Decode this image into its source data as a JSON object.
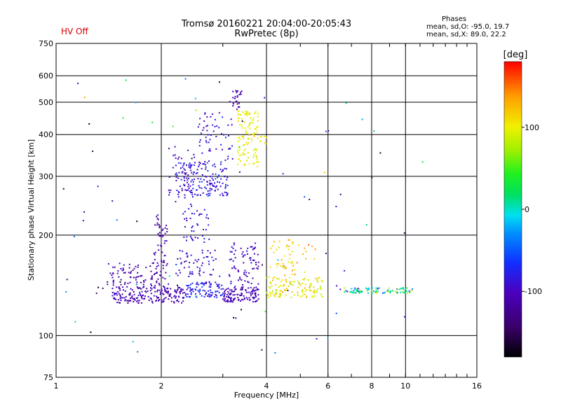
{
  "header": {
    "title_line1": "Tromsø 20160221 20:04:00-20:05:43",
    "title_line2": "RwPretec (8p)",
    "hv_status": "HV Off"
  },
  "phases": {
    "heading": "Phases",
    "o_line": "mean, sd,O: -95.0, 19.7",
    "x_line": "mean, sd,X:  89.0, 22.2"
  },
  "colorbar": {
    "unit": "[deg]",
    "ticks": [
      {
        "label": "100",
        "value": 100
      },
      {
        "label": "0",
        "value": 0
      },
      {
        "label": "-100",
        "value": -100
      }
    ],
    "range": [
      -180,
      180
    ]
  },
  "chart_data": {
    "type": "scatter",
    "title": "Tromsø 20160221 20:04:00-20:05:43",
    "subtitle": "RwPretec (8p)",
    "xlabel": "Frequency [MHz]",
    "ylabel": "Stationary phase Virtual Height [km]",
    "xscale": "log",
    "yscale": "log",
    "xlim": [
      1,
      16
    ],
    "ylim": [
      75,
      750
    ],
    "grid": true,
    "x_ticks": [
      {
        "label": "1",
        "value": 1
      },
      {
        "label": "2",
        "value": 2
      },
      {
        "label": "4",
        "value": 4
      },
      {
        "label": "6",
        "value": 6
      },
      {
        "label": "8",
        "value": 8
      },
      {
        "label": "10",
        "value": 10
      },
      {
        "label": "16",
        "value": 16
      }
    ],
    "y_ticks": [
      {
        "label": "75",
        "value": 75
      },
      {
        "label": "100",
        "value": 100
      },
      {
        "label": "200",
        "value": 200
      },
      {
        "label": "300",
        "value": 300
      },
      {
        "label": "400",
        "value": 400
      },
      {
        "label": "500",
        "value": 500
      },
      {
        "label": "600",
        "value": 600
      },
      {
        "label": "750",
        "value": 750
      }
    ],
    "clusters": [
      {
        "x": [
          1.45,
          2.35
        ],
        "y": [
          125,
          140
        ],
        "n": 190,
        "phase": -105,
        "sd": 15
      },
      {
        "x": [
          1.4,
          2.1
        ],
        "y": [
          140,
          165
        ],
        "n": 90,
        "phase": -110,
        "sd": 15
      },
      {
        "x": [
          2.35,
          3.0
        ],
        "y": [
          130,
          145
        ],
        "n": 90,
        "phase": -80,
        "sd": 20
      },
      {
        "x": [
          3.0,
          3.8
        ],
        "y": [
          126,
          140
        ],
        "n": 120,
        "phase": -105,
        "sd": 15
      },
      {
        "x": [
          3.1,
          3.8
        ],
        "y": [
          140,
          190
        ],
        "n": 75,
        "phase": -100,
        "sd": 15
      },
      {
        "x": [
          1.9,
          2.1
        ],
        "y": [
          150,
          230
        ],
        "n": 50,
        "phase": -110,
        "sd": 12
      },
      {
        "x": [
          2.2,
          2.9
        ],
        "y": [
          150,
          180
        ],
        "n": 55,
        "phase": -95,
        "sd": 20
      },
      {
        "x": [
          2.3,
          2.75
        ],
        "y": [
          190,
          240
        ],
        "n": 40,
        "phase": -90,
        "sd": 20
      },
      {
        "x": [
          2.1,
          2.5
        ],
        "y": [
          240,
          370
        ],
        "n": 40,
        "phase": -100,
        "sd": 15
      },
      {
        "x": [
          2.2,
          3.1
        ],
        "y": [
          260,
          330
        ],
        "n": 160,
        "phase": -85,
        "sd": 18
      },
      {
        "x": [
          2.55,
          3.2
        ],
        "y": [
          330,
          470
        ],
        "n": 60,
        "phase": -90,
        "sd": 15
      },
      {
        "x": [
          3.2,
          3.4
        ],
        "y": [
          470,
          550
        ],
        "n": 25,
        "phase": -105,
        "sd": 10
      },
      {
        "x": [
          3.3,
          3.8
        ],
        "y": [
          320,
          470
        ],
        "n": 110,
        "phase": 100,
        "sd": 15
      },
      {
        "x": [
          3.8,
          4.0
        ],
        "y": [
          375,
          400
        ],
        "n": 8,
        "phase": 110,
        "sd": 10
      },
      {
        "x": [
          4.0,
          5.8
        ],
        "y": [
          130,
          150
        ],
        "n": 120,
        "phase": 100,
        "sd": 25
      },
      {
        "x": [
          4.1,
          4.8
        ],
        "y": [
          150,
          195
        ],
        "n": 40,
        "phase": 110,
        "sd": 25
      },
      {
        "x": [
          4.8,
          5.6
        ],
        "y": [
          145,
          190
        ],
        "n": 15,
        "phase": 130,
        "sd": 20
      },
      {
        "x": [
          6.6,
          10.5
        ],
        "y": [
          134,
          139
        ],
        "n": 90,
        "phase": 10,
        "sd": 70
      },
      {
        "x": [
          1.05,
          11.5
        ],
        "y": [
          85,
          600
        ],
        "n": 80,
        "phase": -60,
        "sd": 110
      }
    ]
  }
}
